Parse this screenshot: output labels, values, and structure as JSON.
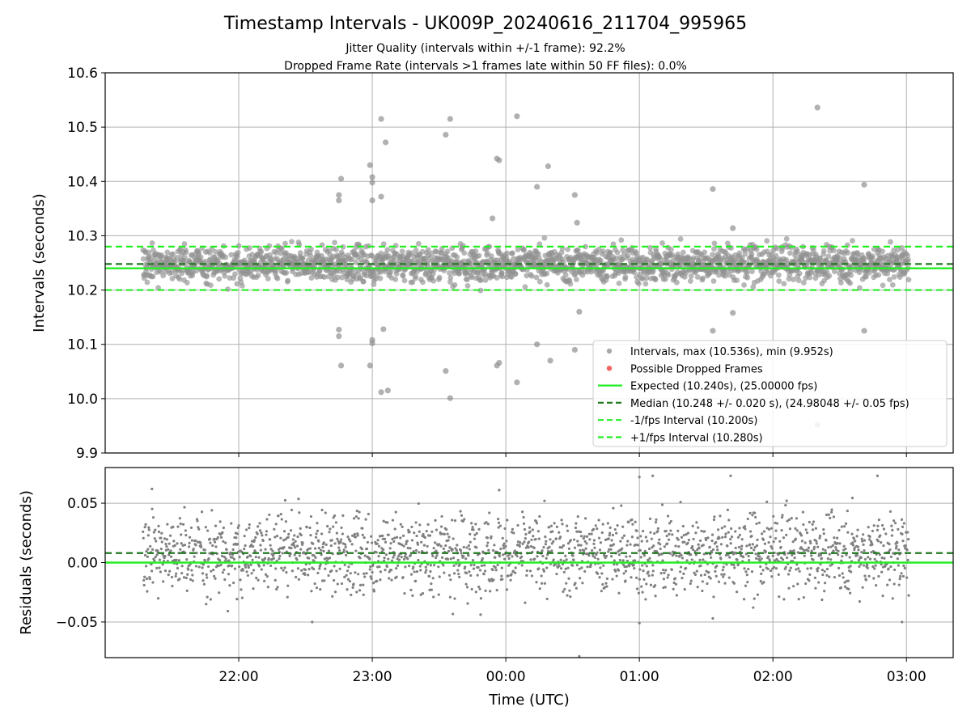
{
  "title": "Timestamp Intervals - UK009P_20240616_211704_995965",
  "subtitle_lines": [
    "Jitter Quality (intervals within +/-1 frame): 92.2%",
    "Dropped Frame Rate (intervals >1 frames late within 50 FF files): 0.0%"
  ],
  "colors": {
    "points": "#808080",
    "dropped": "#ef5350",
    "expected": "#22ee22",
    "median": "#1e7a1e",
    "interval": "#22ee22",
    "grid": "#b0b0b0"
  },
  "chart_data": [
    {
      "type": "scatter",
      "panel": "intervals",
      "ylabel": "Intervals (seconds)",
      "xlabel": "",
      "x_ticks": [
        "22:00",
        "23:00",
        "00:00",
        "01:00",
        "02:00",
        "03:00"
      ],
      "x_range": [
        "21:00",
        "03:21"
      ],
      "ylim": [
        9.9,
        10.6
      ],
      "y_ticks": [
        "9.9",
        "10.0",
        "10.1",
        "10.2",
        "10.3",
        "10.4",
        "10.5",
        "10.6"
      ],
      "grid": true,
      "data_time_range": [
        "21:17",
        "03:01"
      ],
      "point_count": 2015,
      "expected": 10.24,
      "median": 10.248,
      "lower_interval": 10.2,
      "upper_interval": 10.28,
      "typical_range": [
        10.2,
        10.3
      ],
      "outliers": [
        {
          "t": "22:45",
          "y": 10.375
        },
        {
          "t": "22:45",
          "y": 10.365
        },
        {
          "t": "22:46",
          "y": 10.405
        },
        {
          "t": "22:45",
          "y": 10.127
        },
        {
          "t": "22:45",
          "y": 10.115
        },
        {
          "t": "22:46",
          "y": 10.061
        },
        {
          "t": "22:59",
          "y": 10.43
        },
        {
          "t": "23:00",
          "y": 10.408
        },
        {
          "t": "23:00",
          "y": 10.398
        },
        {
          "t": "23:00",
          "y": 10.365
        },
        {
          "t": "23:04",
          "y": 10.515
        },
        {
          "t": "23:04",
          "y": 10.372
        },
        {
          "t": "23:06",
          "y": 10.472
        },
        {
          "t": "22:59",
          "y": 10.061
        },
        {
          "t": "23:00",
          "y": 10.108
        },
        {
          "t": "23:00",
          "y": 10.102
        },
        {
          "t": "23:05",
          "y": 10.128
        },
        {
          "t": "23:04",
          "y": 10.012
        },
        {
          "t": "23:07",
          "y": 10.015
        },
        {
          "t": "23:33",
          "y": 10.486
        },
        {
          "t": "23:35",
          "y": 10.515
        },
        {
          "t": "23:33",
          "y": 10.051
        },
        {
          "t": "23:35",
          "y": 10.001
        },
        {
          "t": "23:54",
          "y": 10.332
        },
        {
          "t": "23:56",
          "y": 10.442
        },
        {
          "t": "23:57",
          "y": 10.439
        },
        {
          "t": "23:56",
          "y": 10.061
        },
        {
          "t": "23:57",
          "y": 10.066
        },
        {
          "t": "00:05",
          "y": 10.52
        },
        {
          "t": "00:05",
          "y": 10.03
        },
        {
          "t": "00:14",
          "y": 10.39
        },
        {
          "t": "00:14",
          "y": 10.1
        },
        {
          "t": "00:19",
          "y": 10.428
        },
        {
          "t": "00:20",
          "y": 10.07
        },
        {
          "t": "00:31",
          "y": 10.375
        },
        {
          "t": "00:31",
          "y": 10.09
        },
        {
          "t": "00:32",
          "y": 10.324
        },
        {
          "t": "00:33",
          "y": 10.16
        },
        {
          "t": "01:33",
          "y": 10.386
        },
        {
          "t": "01:33",
          "y": 10.125
        },
        {
          "t": "01:42",
          "y": 10.314
        },
        {
          "t": "01:42",
          "y": 10.158
        },
        {
          "t": "02:20",
          "y": 10.536
        },
        {
          "t": "02:20",
          "y": 9.952
        },
        {
          "t": "02:41",
          "y": 10.394
        },
        {
          "t": "02:41",
          "y": 10.125
        }
      ],
      "legend": {
        "placement": "lower-right",
        "entries": [
          {
            "label": "Intervals, max (10.536s), min (9.952s)",
            "style": "point",
            "color": "#a0a0a0"
          },
          {
            "label": "Possible Dropped Frames",
            "style": "point",
            "color": "#ef5350"
          },
          {
            "label": "Expected (10.240s), (25.00000 fps)",
            "style": "solid",
            "color": "#22ee22"
          },
          {
            "label": "Median (10.248 +/- 0.020 s), (24.98048 +/- 0.05 fps)",
            "style": "dashed",
            "color": "#1e7a1e"
          },
          {
            "label": "-1/fps Interval (10.200s)",
            "style": "dashed",
            "color": "#22ee22"
          },
          {
            "label": "+1/fps Interval (10.280s)",
            "style": "dashed",
            "color": "#22ee22"
          }
        ]
      }
    },
    {
      "type": "scatter",
      "panel": "residuals",
      "ylabel": "Residuals (seconds)",
      "xlabel": "Time (UTC)",
      "x_ticks": [
        "22:00",
        "23:00",
        "00:00",
        "01:00",
        "02:00",
        "03:00"
      ],
      "x_range": [
        "21:00",
        "03:21"
      ],
      "ylim": [
        -0.08,
        0.08
      ],
      "y_ticks": [
        "−0.05",
        "0.00",
        "0.05"
      ],
      "y_tick_values": [
        -0.05,
        0.0,
        0.05
      ],
      "grid": true,
      "zero_line": 0.0,
      "median_offset": 0.008,
      "typical_range": [
        -0.035,
        0.055
      ],
      "outliers": [
        {
          "t": "21:21",
          "y": 0.062
        },
        {
          "t": "22:33",
          "y": -0.05
        },
        {
          "t": "23:57",
          "y": 0.061
        },
        {
          "t": "00:33",
          "y": -0.079
        },
        {
          "t": "01:00",
          "y": 0.072
        },
        {
          "t": "01:06",
          "y": 0.073
        },
        {
          "t": "01:00",
          "y": -0.051
        },
        {
          "t": "01:41",
          "y": 0.073
        },
        {
          "t": "02:47",
          "y": 0.073
        },
        {
          "t": "02:58",
          "y": -0.05
        },
        {
          "t": "01:33",
          "y": -0.047
        }
      ]
    }
  ]
}
